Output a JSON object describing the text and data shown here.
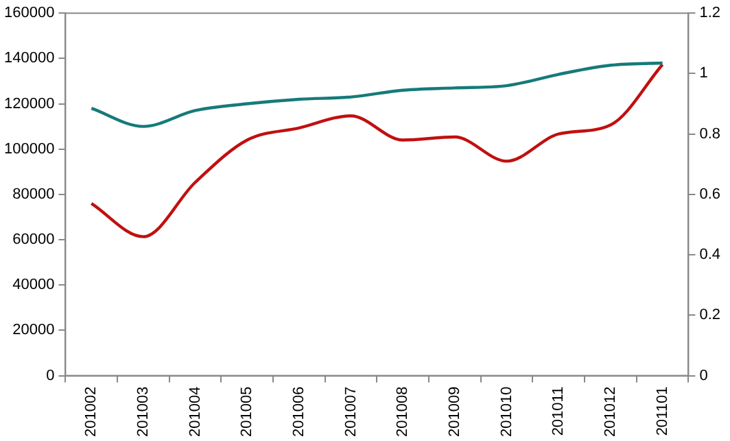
{
  "chart_data": {
    "type": "line",
    "categories": [
      "201002",
      "201003",
      "201004",
      "201005",
      "201006",
      "201007",
      "201008",
      "201009",
      "201010",
      "201011",
      "201012",
      "201101"
    ],
    "series": [
      {
        "color": "#167a7a",
        "values": [
          118000,
          110000,
          117000,
          120000,
          122000,
          123000,
          126000,
          127000,
          128000,
          133000,
          137000,
          138000
        ]
      },
      {
        "color": "#c01010",
        "axis": "y2",
        "values": [
          0.57,
          0.46,
          0.64,
          0.78,
          0.82,
          0.86,
          0.78,
          0.79,
          0.71,
          0.8,
          0.83,
          1.03
        ]
      }
    ],
    "ylim": [
      0,
      160000
    ],
    "yticks": [
      0,
      20000,
      40000,
      60000,
      80000,
      100000,
      120000,
      140000,
      160000
    ],
    "y2lim": [
      0,
      1.2
    ],
    "y2ticks": [
      0,
      0.2,
      0.4,
      0.6,
      0.8,
      1,
      1.2
    ],
    "grid": false,
    "legend": false,
    "marker": "none",
    "line_style": "solid"
  }
}
